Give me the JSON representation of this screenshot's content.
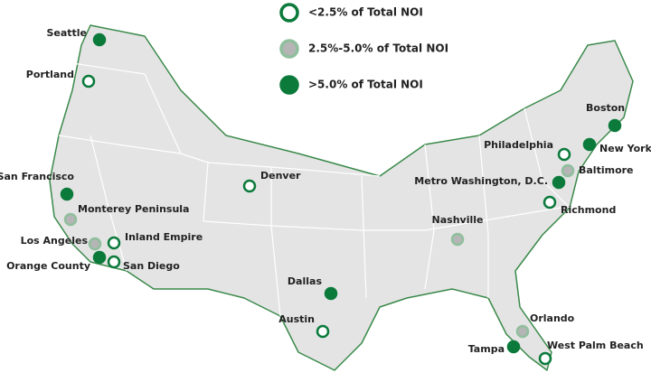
{
  "legend": [
    {
      "label": "<2.5% of Total NOI",
      "fill": "#ffffff",
      "stroke": "#0b7a3b",
      "cities": [
        "Portland",
        "Denver",
        "Inland Empire",
        "San Diego",
        "Austin",
        "Philadelphia",
        "Richmond",
        "West Palm Beach"
      ]
    },
    {
      "label": "2.5%-5.0% of Total NOI",
      "fill": "#b5b5b5",
      "stroke": "#8fbf9c",
      "cities": [
        "Monterey Peninsula",
        "Los Angeles",
        "Nashville",
        "Baltimore",
        "Orlando"
      ]
    },
    {
      "label": ">5.0% of Total NOI",
      "fill": "#0b7a3b",
      "stroke": "#0b7a3b",
      "cities": [
        "Seattle",
        "San Francisco",
        "Orange County",
        "Dallas",
        "Tampa",
        "Boston",
        "New York",
        "Metro Washington, D.C."
      ]
    }
  ]
}
